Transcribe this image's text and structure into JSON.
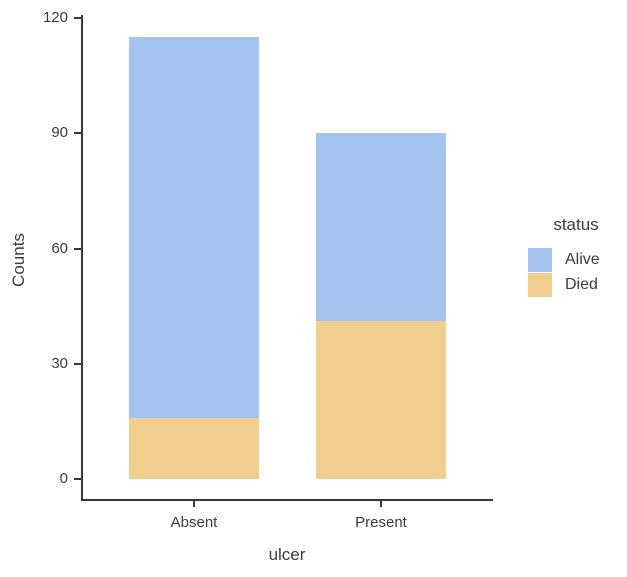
{
  "chart_data": {
    "type": "bar",
    "stacked": true,
    "title": "",
    "xlabel": "ulcer",
    "ylabel": "Counts",
    "categories": [
      "Absent",
      "Present"
    ],
    "series": [
      {
        "name": "Alive",
        "color": "#a5c3ef",
        "values": [
          99,
          49
        ]
      },
      {
        "name": "Died",
        "color": "#efce8e",
        "values": [
          16,
          41
        ]
      }
    ],
    "stack_order_bottom_to_top": [
      "Died",
      "Alive"
    ],
    "y_ticks": [
      0,
      30,
      60,
      90,
      120
    ],
    "ylim": [
      0,
      120
    ],
    "grid": "off",
    "legend": {
      "title": "status",
      "position": "right"
    }
  },
  "colors": {
    "axis": "#383838",
    "text": "#3c3c3c",
    "background": "#ffffff"
  }
}
